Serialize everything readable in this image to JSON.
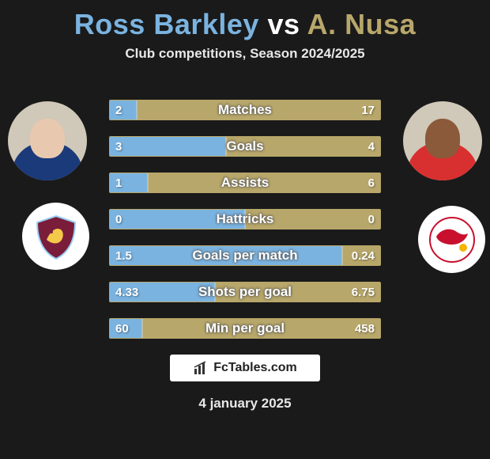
{
  "title_l": "Ross Barkley",
  "title_m": " vs ",
  "title_r": "A. Nusa",
  "title_color_l": "#7ab3e0",
  "title_color_m": "#ffffff",
  "title_color_r": "#b8a76a",
  "subtitle": "Club competitions, Season 2024/2025",
  "color_l": "#7ab3e0",
  "color_r": "#b8a76a",
  "border_color": "#b8a76a",
  "rows": [
    {
      "label": "Matches",
      "l": "2",
      "r": "17",
      "fl": 10,
      "fr": 90
    },
    {
      "label": "Goals",
      "l": "3",
      "r": "4",
      "fl": 43,
      "fr": 57
    },
    {
      "label": "Assists",
      "l": "1",
      "r": "6",
      "fl": 14,
      "fr": 86
    },
    {
      "label": "Hattricks",
      "l": "0",
      "r": "0",
      "fl": 50,
      "fr": 50
    },
    {
      "label": "Goals per match",
      "l": "1.5",
      "r": "0.24",
      "fl": 86,
      "fr": 14
    },
    {
      "label": "Shots per goal",
      "l": "4.33",
      "r": "6.75",
      "fl": 39,
      "fr": 61
    },
    {
      "label": "Min per goal",
      "l": "60",
      "r": "458",
      "fl": 12,
      "fr": 88
    }
  ],
  "branding": "FcTables.com",
  "date": "4 january 2025"
}
